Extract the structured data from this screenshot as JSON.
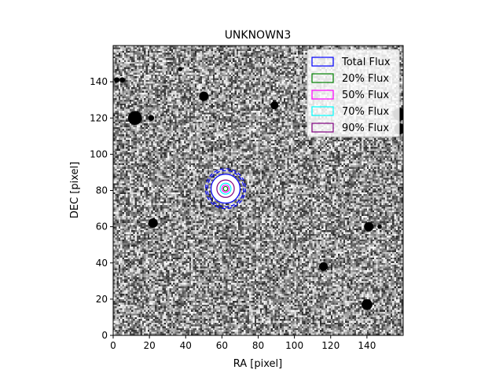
{
  "chart_data": {
    "type": "image",
    "title": "UNKNOWN3",
    "xlabel": "RA [pixel]",
    "ylabel": "DEC [pixel]",
    "xlim": [
      0,
      160
    ],
    "ylim": [
      0,
      160
    ],
    "xticks": [
      0,
      20,
      40,
      60,
      80,
      100,
      120,
      140
    ],
    "yticks": [
      0,
      20,
      40,
      60,
      80,
      100,
      120,
      140
    ],
    "image_colormap": "gray",
    "center": [
      62,
      81
    ],
    "apertures": [
      {
        "name": "Total Flux",
        "color": "#0000ff",
        "radius": 8,
        "style": "solid"
      },
      {
        "name": "20% Flux",
        "color": "#008000",
        "radius": 1.2,
        "style": "solid"
      },
      {
        "name": "50% Flux",
        "color": "#ff00ff",
        "radius": 2.0,
        "style": "solid"
      },
      {
        "name": "70% Flux",
        "color": "#00ffff",
        "radius": 3.0,
        "style": "solid"
      },
      {
        "name": "90% Flux",
        "color": "#800080",
        "radius": 4.8,
        "style": "solid"
      }
    ],
    "outer_dashed_rings": [
      {
        "color": "#0000ff",
        "radius": 10
      },
      {
        "color": "#0000ff",
        "radius": 11
      }
    ],
    "masked_sources": [
      {
        "x": 12,
        "y": 120,
        "r": 3.8
      },
      {
        "x": 21,
        "y": 120,
        "r": 1.6
      },
      {
        "x": 50,
        "y": 132,
        "r": 2.6
      },
      {
        "x": 89,
        "y": 127,
        "r": 2.2
      },
      {
        "x": 22,
        "y": 62,
        "r": 2.6
      },
      {
        "x": 141,
        "y": 60,
        "r": 2.6
      },
      {
        "x": 116,
        "y": 38,
        "r": 2.4
      },
      {
        "x": 140,
        "y": 17,
        "r": 3.0
      },
      {
        "x": 147,
        "y": 60,
        "r": 1.2
      },
      {
        "x": 2,
        "y": 141,
        "r": 1.5
      },
      {
        "x": 5,
        "y": 141,
        "r": 1.5
      },
      {
        "x": 37,
        "y": 147,
        "r": 1.2
      },
      {
        "x": 158,
        "y": 122,
        "r": 3.5
      },
      {
        "x": 158,
        "y": 114,
        "r": 3.0
      }
    ],
    "legend_placement": "upper-right",
    "grid": false
  }
}
